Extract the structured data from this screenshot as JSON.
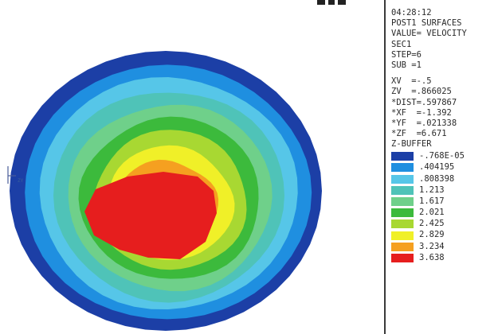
{
  "top_time": "04:28:12",
  "info_lines": [
    "POST1 SURFACES",
    "VALUE= VELOCITY",
    "SEC1",
    "STEP=6",
    "SUB =1"
  ],
  "view_lines": [
    "XV  =-.5",
    "ZV  =.866025",
    "*DIST=.597867",
    "*XF  =-1.392",
    "*YF  =.021338",
    "*ZF  =6.671",
    "Z-BUFFER"
  ],
  "legend": [
    {
      "value": "-.768E-05",
      "color": "#1c3fa6"
    },
    {
      "value": ".404195",
      "color": "#1f8fe0"
    },
    {
      "value": ".808398",
      "color": "#56c6e8"
    },
    {
      "value": "1.213",
      "color": "#4fc3b8"
    },
    {
      "value": "1.617",
      "color": "#6fd08a"
    },
    {
      "value": "2.021",
      "color": "#3cba3c"
    },
    {
      "value": "2.425",
      "color": "#a8d832"
    },
    {
      "value": "2.829",
      "color": "#f0f028"
    },
    {
      "value": "3.234",
      "color": "#f5a020"
    },
    {
      "value": "3.638",
      "color": "#e61e1e"
    }
  ],
  "triad_label": "ZY",
  "icons": {
    "axis_triad": "axis-triad-icon"
  }
}
